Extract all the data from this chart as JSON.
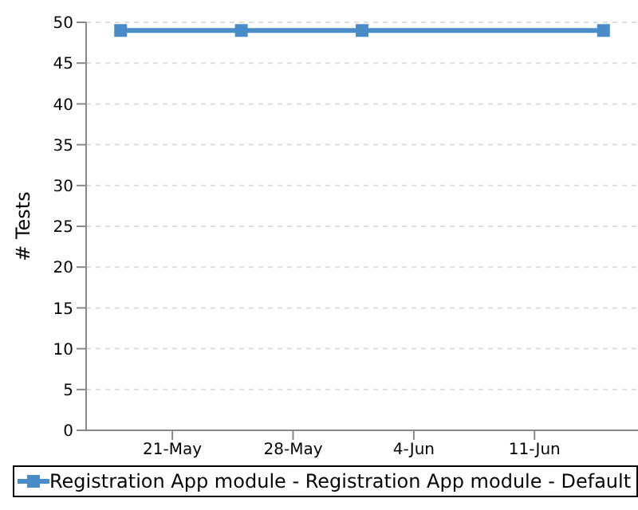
{
  "chart_data": {
    "type": "line",
    "ylabel": "# Tests",
    "x": [
      "--05-18",
      "--05-25",
      "--06-01",
      "--06-15"
    ],
    "series": [
      {
        "name": "Registration App module - Registration App module - Default",
        "color": "#4a8cc8",
        "values": [
          49,
          49,
          49,
          49
        ]
      }
    ],
    "xlim": [
      "--05-16",
      "--06-17"
    ],
    "xticks": [
      {
        "value": "--05-21",
        "label": "21-May"
      },
      {
        "value": "--05-28",
        "label": "28-May"
      },
      {
        "value": "--06-04",
        "label": "4-Jun"
      },
      {
        "value": "--06-11",
        "label": "11-Jun"
      }
    ],
    "ylim": [
      0,
      50
    ],
    "yticks": [
      0,
      5,
      10,
      15,
      20,
      25,
      30,
      35,
      40,
      45,
      50
    ],
    "grid": "y",
    "legend": "bottom",
    "marker": "square",
    "line_style": "solid"
  }
}
